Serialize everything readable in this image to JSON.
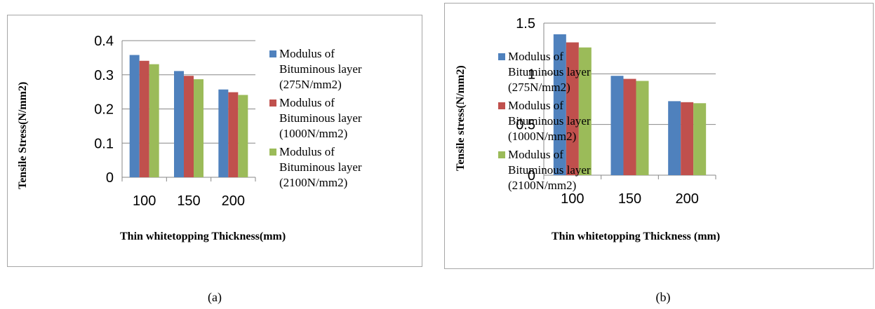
{
  "chart_data": [
    {
      "type": "bar",
      "categories": [
        "100",
        "150",
        "200"
      ],
      "series": [
        {
          "name": "Modulus of Bituminous layer (275N/mm2)",
          "values": [
            0.358,
            0.311,
            0.257
          ],
          "color": "#4F81BD"
        },
        {
          "name": "Modulus of Bituminous layer (1000N/mm2)",
          "values": [
            0.341,
            0.297,
            0.249
          ],
          "color": "#C0504D"
        },
        {
          "name": "Modulus of Bituminous layer (2100N/mm2)",
          "values": [
            0.331,
            0.287,
            0.241
          ],
          "color": "#9BBB59"
        }
      ],
      "xlabel": "Thin whitetopping Thickness(mm)",
      "ylabel": "Tensile Stress(N/mm2)",
      "yticks": [
        "0",
        "0.1",
        "0.2",
        "0.3",
        "0.4"
      ],
      "ylim": [
        0,
        0.4
      ],
      "legend": {
        "position": "right",
        "entries": [
          [
            "Modulus of",
            "Bituminous layer",
            "(275N/mm2)"
          ],
          [
            "Modulus of",
            "Bituminous layer",
            "(1000N/mm2)"
          ],
          [
            "Modulus of",
            "Bituminous layer",
            "(2100N/mm2)"
          ]
        ]
      },
      "grid": true
    },
    {
      "type": "bar",
      "categories": [
        "100",
        "150",
        "200"
      ],
      "series": [
        {
          "name": "Modulus of Bituminous layer (275N/mm2)",
          "values": [
            1.39,
            0.98,
            0.73
          ],
          "color": "#4F81BD"
        },
        {
          "name": "Modulus of Bituminous layer (1000N/mm2)",
          "values": [
            1.31,
            0.95,
            0.72
          ],
          "color": "#C0504D"
        },
        {
          "name": "Modulus of Bituminous layer (2100N/mm2)",
          "values": [
            1.26,
            0.93,
            0.71
          ],
          "color": "#9BBB59"
        }
      ],
      "xlabel": "Thin whitetopping Thickness (mm)",
      "ylabel": "Tensile stress(N/mm2)",
      "yticks": [
        "0",
        "0.5",
        "1",
        "1.5"
      ],
      "ylim": [
        0,
        1.5
      ],
      "legend": {
        "position": "right",
        "entries": [
          [
            "Modulus of",
            "Bituminous layer",
            "(275N/mm2)"
          ],
          [
            "Modulus of",
            "Bituminous layer",
            "(1000N/mm2)"
          ],
          [
            "Modulus of",
            "Bituminous layer",
            "(2100N/mm2)"
          ]
        ]
      },
      "grid": true
    }
  ],
  "captions": [
    "(a)",
    "(b)"
  ]
}
